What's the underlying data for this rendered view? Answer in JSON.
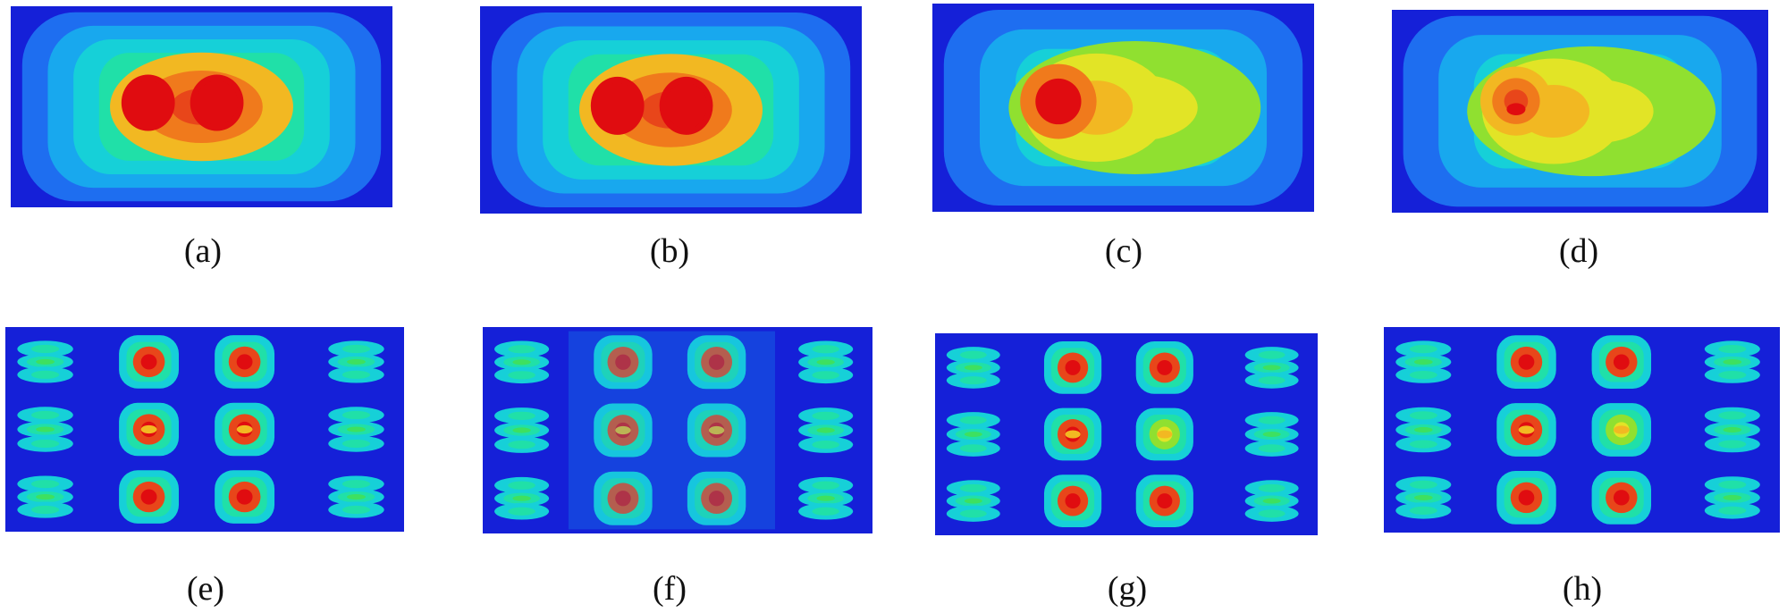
{
  "colors": {
    "plate": "#1520d8",
    "contour_scale": [
      "#1520d8",
      "#1e6ef0",
      "#18a8ee",
      "#16d0d8",
      "#20e0a8",
      "#3ee060",
      "#90e030",
      "#e2e426",
      "#f2b822",
      "#f07a1c",
      "#e8461a",
      "#e00c10"
    ]
  },
  "panels": [
    {
      "id": "a",
      "caption": "(a)",
      "pattern": "twin-peak centered"
    },
    {
      "id": "b",
      "caption": "(b)",
      "pattern": "twin-peak centered"
    },
    {
      "id": "c",
      "caption": "(c)",
      "pattern": "single peak left, tail to right"
    },
    {
      "id": "d",
      "caption": "(d)",
      "pattern": "single peak left, tail to right"
    },
    {
      "id": "e",
      "caption": "(e)",
      "pattern": "4 x 3 lobe grid, outer columns split"
    },
    {
      "id": "f",
      "caption": "(f)",
      "pattern": "4 x 3 lobe grid, outer columns split"
    },
    {
      "id": "g",
      "caption": "(g)",
      "pattern": "4 x 3 lobe grid, outer columns split"
    },
    {
      "id": "h",
      "caption": "(h)",
      "pattern": "4 x 3 lobe grid, outer columns split"
    }
  ]
}
